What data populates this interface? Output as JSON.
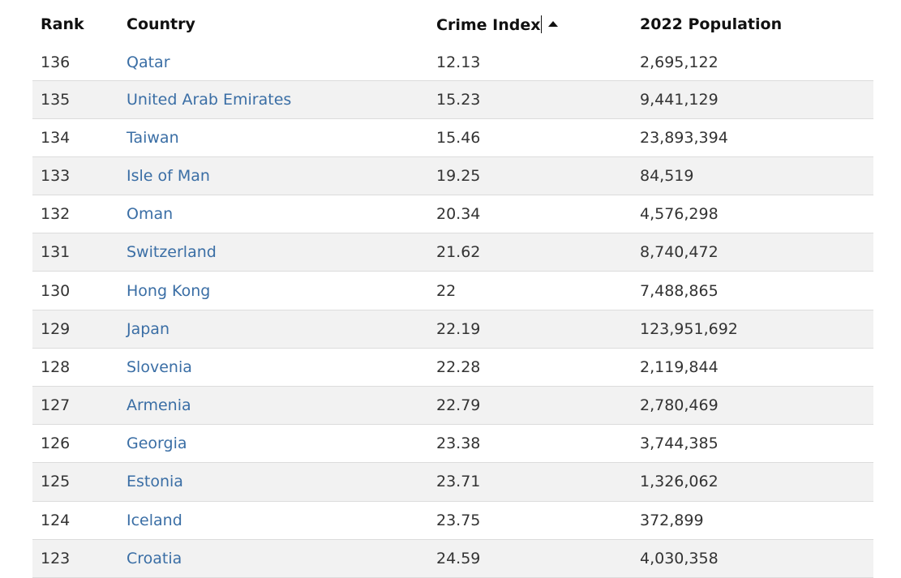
{
  "table": {
    "headers": {
      "rank": "Rank",
      "country": "Country",
      "crime_index": "Crime Index",
      "population": "2022 Population"
    },
    "sort": {
      "column": "crime_index",
      "direction": "ascending"
    },
    "rows": [
      {
        "rank": "136",
        "country": "Qatar",
        "crime_index": "12.13",
        "population": "2,695,122"
      },
      {
        "rank": "135",
        "country": "United Arab Emirates",
        "crime_index": "15.23",
        "population": "9,441,129"
      },
      {
        "rank": "134",
        "country": "Taiwan",
        "crime_index": "15.46",
        "population": "23,893,394"
      },
      {
        "rank": "133",
        "country": "Isle of Man",
        "crime_index": "19.25",
        "population": "84,519"
      },
      {
        "rank": "132",
        "country": "Oman",
        "crime_index": "20.34",
        "population": "4,576,298"
      },
      {
        "rank": "131",
        "country": "Switzerland",
        "crime_index": "21.62",
        "population": "8,740,472"
      },
      {
        "rank": "130",
        "country": "Hong Kong",
        "crime_index": "22",
        "population": "7,488,865"
      },
      {
        "rank": "129",
        "country": "Japan",
        "crime_index": "22.19",
        "population": "123,951,692"
      },
      {
        "rank": "128",
        "country": "Slovenia",
        "crime_index": "22.28",
        "population": "2,119,844"
      },
      {
        "rank": "127",
        "country": "Armenia",
        "crime_index": "22.79",
        "population": "2,780,469"
      },
      {
        "rank": "126",
        "country": "Georgia",
        "crime_index": "23.38",
        "population": "3,744,385"
      },
      {
        "rank": "125",
        "country": "Estonia",
        "crime_index": "23.71",
        "population": "1,326,062"
      },
      {
        "rank": "124",
        "country": "Iceland",
        "crime_index": "23.75",
        "population": "372,899"
      },
      {
        "rank": "123",
        "country": "Croatia",
        "crime_index": "24.59",
        "population": "4,030,358"
      }
    ]
  },
  "colors": {
    "link": "#3a6ea5",
    "row_alt": "#f2f2f2",
    "row_border": "#dcdcdc",
    "header_text": "#111111",
    "body_text": "#333333"
  },
  "icons": {
    "sort": "caret-up-icon"
  }
}
